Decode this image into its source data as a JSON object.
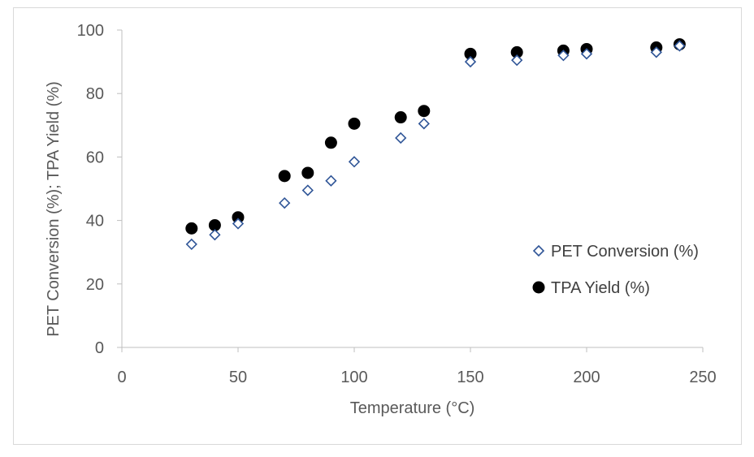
{
  "chart_data": {
    "type": "scatter",
    "title": "",
    "xlabel": "Temperature (°C)",
    "ylabel": "PET Conversion (%); TPA Yield (%)",
    "xlim": [
      0,
      250
    ],
    "ylim": [
      0,
      100
    ],
    "xticks": [
      0,
      50,
      100,
      150,
      200,
      250
    ],
    "yticks": [
      0,
      20,
      40,
      60,
      80,
      100
    ],
    "grid": false,
    "legend_position": "right",
    "series": [
      {
        "name": "PET Conversion (%)",
        "marker": "diamond-open",
        "color": "#2f5597",
        "points": [
          [
            30,
            32.5
          ],
          [
            40,
            35.5
          ],
          [
            50,
            39
          ],
          [
            70,
            45.5
          ],
          [
            80,
            49.5
          ],
          [
            90,
            52.5
          ],
          [
            100,
            58.5
          ],
          [
            120,
            66
          ],
          [
            130,
            70.5
          ],
          [
            150,
            90
          ],
          [
            170,
            90.5
          ],
          [
            190,
            92
          ],
          [
            200,
            92.5
          ],
          [
            230,
            93
          ],
          [
            240,
            95
          ]
        ]
      },
      {
        "name": "TPA Yield (%)",
        "marker": "circle-filled",
        "color": "#000000",
        "points": [
          [
            30,
            37.5
          ],
          [
            40,
            38.5
          ],
          [
            50,
            41
          ],
          [
            70,
            54
          ],
          [
            80,
            55
          ],
          [
            90,
            64.5
          ],
          [
            100,
            70.5
          ],
          [
            120,
            72.5
          ],
          [
            130,
            74.5
          ],
          [
            150,
            92.5
          ],
          [
            170,
            93
          ],
          [
            190,
            93.5
          ],
          [
            200,
            94
          ],
          [
            230,
            94.5
          ],
          [
            240,
            95.5
          ]
        ]
      }
    ]
  }
}
